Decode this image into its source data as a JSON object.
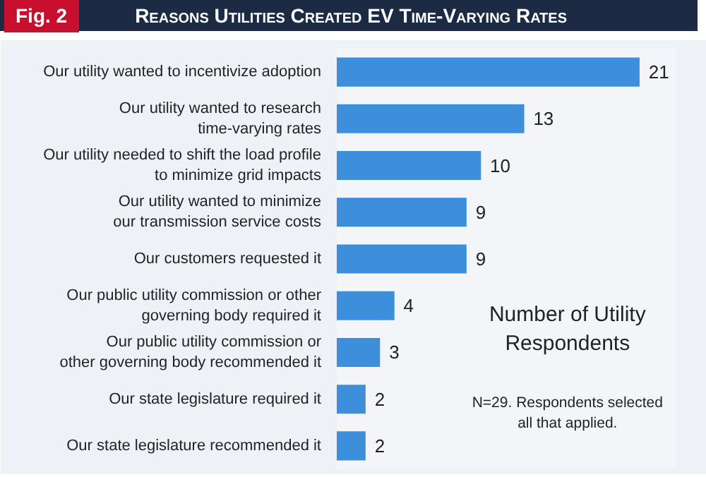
{
  "chart_data": {
    "type": "bar",
    "orientation": "horizontal",
    "title": "Reasons Utilities Created EV Time-Varying Rates",
    "subtitle": "Fig. 2",
    "categories": [
      "Our utility wanted to incentivize adoption",
      "Our utility wanted to research\ntime-varying rates",
      "Our utility needed to shift the load profile\nto minimize grid impacts",
      "Our utility wanted to minimize\nour transmission service costs",
      "Our customers requested it",
      "Our public utility commission or other\ngoverning body required it",
      "Our public utility commission or\nother governing body recommended it",
      "Our state legislature required it",
      "Our state legislature recommended it"
    ],
    "values": [
      21,
      13,
      10,
      9,
      9,
      4,
      3,
      2,
      2
    ],
    "color": "#3d8fdb",
    "data_labels": true,
    "grid": false,
    "annotations": [
      "Number of Utility\nRespondents",
      "N=29. Respondents selected\nall that applied."
    ]
  }
}
